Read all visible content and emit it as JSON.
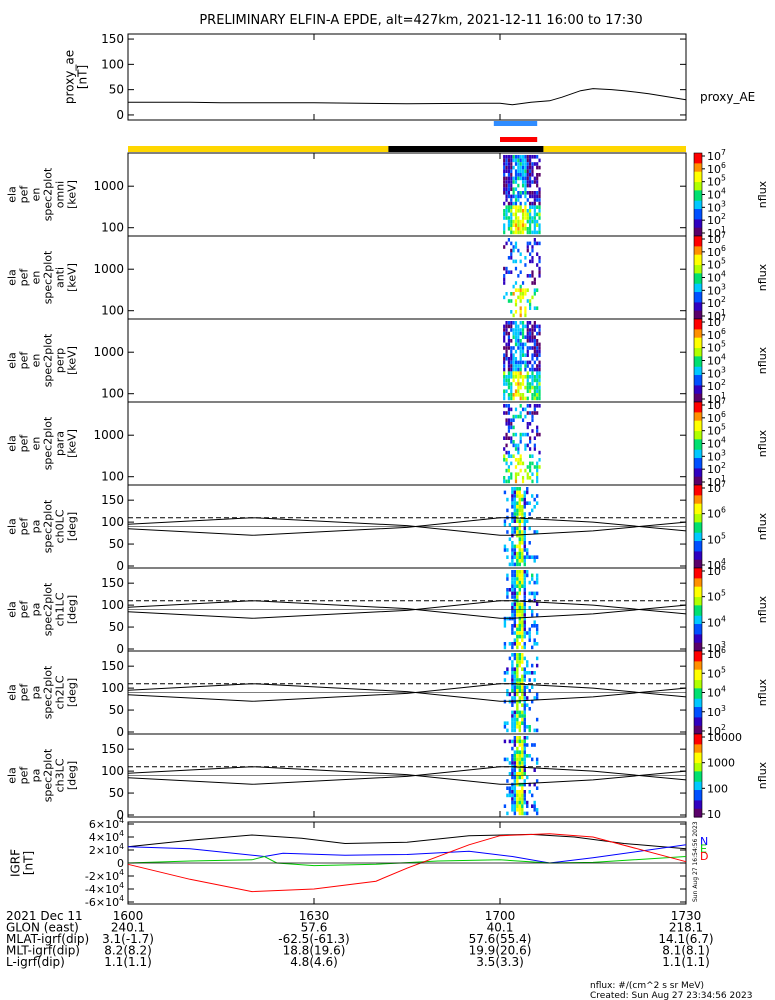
{
  "title": "PRELIMINARY ELFIN-A EPDE, alt=427km, 2021-12-11 16:00 to 17:30",
  "chart_data": {
    "type": "multi-panel",
    "x_range": [
      "2021-12-11 16:00",
      "2021-12-11 17:30"
    ],
    "proxy_ae": {
      "ylabel": "proxy_ae\n[nT]",
      "side_label": "proxy_AE",
      "yticks": [
        "0",
        "50",
        "100",
        "150"
      ],
      "ylim": [
        -10,
        160
      ],
      "x_minutes": [
        0,
        10,
        15,
        30,
        45,
        57,
        60,
        62,
        65,
        68,
        70,
        73,
        75,
        78,
        80,
        84,
        90
      ],
      "values": [
        25,
        25,
        24,
        24,
        22,
        23,
        23,
        20,
        25,
        28,
        35,
        48,
        52,
        50,
        48,
        42,
        30
      ]
    },
    "bars": {
      "blue_bar": [
        "16:59",
        "17:06"
      ],
      "red_bar": [
        "17:00",
        "17:06"
      ],
      "yellow_segments": [
        [
          "16:00",
          "16:42"
        ],
        [
          "17:07",
          "17:30"
        ]
      ],
      "black_segment": [
        "16:42",
        "17:07"
      ]
    },
    "spectrograms": [
      {
        "ylabel": "ela\npef\nen\nspec2plot\nomni\n[keV]",
        "yticks": [
          "100",
          "1000"
        ],
        "cb_ticks": [
          "10^1",
          "10^2",
          "10^3",
          "10^4",
          "10^5",
          "10^6",
          "10^7"
        ],
        "cb_label": "nflux"
      },
      {
        "ylabel": "ela\npef\nen\nspec2plot\nanti\n[keV]",
        "yticks": [
          "100",
          "1000"
        ],
        "cb_ticks": [
          "10^1",
          "10^2",
          "10^3",
          "10^4",
          "10^5",
          "10^6",
          "10^7"
        ],
        "cb_label": "nflux"
      },
      {
        "ylabel": "ela\npef\nen\nspec2plot\nperp\n[keV]",
        "yticks": [
          "100",
          "1000"
        ],
        "cb_ticks": [
          "10^1",
          "10^2",
          "10^3",
          "10^4",
          "10^5",
          "10^6",
          "10^7"
        ],
        "cb_label": "nflux"
      },
      {
        "ylabel": "ela\npef\nen\nspec2plot\npara\n[keV]",
        "yticks": [
          "100",
          "1000"
        ],
        "cb_ticks": [
          "10^1",
          "10^2",
          "10^3",
          "10^4",
          "10^5",
          "10^6",
          "10^7"
        ],
        "cb_label": "nflux"
      }
    ],
    "pitch_panels": [
      {
        "ylabel": "ela\npef\npa\nspec2plot\nch0LC\n[deg]",
        "yticks": [
          "0",
          "50",
          "100",
          "150"
        ],
        "cb_ticks": [
          "10^4",
          "10^5",
          "10^6",
          "10^7"
        ],
        "cb_label": "nflux"
      },
      {
        "ylabel": "ela\npef\npa\nspec2plot\nch1LC\n[deg]",
        "yticks": [
          "0",
          "50",
          "100",
          "150"
        ],
        "cb_ticks": [
          "10^3",
          "10^4",
          "10^5",
          "10^6"
        ],
        "cb_label": "nflux"
      },
      {
        "ylabel": "ela\npef\npa\nspec2plot\nch2LC\n[deg]",
        "yticks": [
          "0",
          "50",
          "100",
          "150"
        ],
        "cb_ticks": [
          "10^2",
          "10^3",
          "10^4",
          "10^5",
          "10^6"
        ],
        "cb_label": "nflux"
      },
      {
        "ylabel": "ela\npef\npa\nspec2plot\nch3LC\n[deg]",
        "yticks": [
          "0",
          "50",
          "100",
          "150"
        ],
        "cb_ticks": [
          "10",
          "100",
          "1000",
          "10000"
        ],
        "cb_label": "nflux"
      }
    ],
    "igrf": {
      "ylabel": "IGRF\n[nT]",
      "yticks": [
        "-6×10^4",
        "-4×10^4",
        "-2×10^4",
        "0",
        "2×10^4",
        "4×10^4",
        "6×10^4"
      ],
      "legend": [
        "N",
        "E",
        "D"
      ],
      "legend_colors": [
        "#0000ff",
        "#00cc00",
        "#ff0000"
      ],
      "side_text": "Sun Aug 27 16:54:56 2023"
    },
    "xaxis": {
      "rows": [
        {
          "label": "2021 Dec 11",
          "values": [
            "1600",
            "1630",
            "1700",
            "1730"
          ]
        },
        {
          "label": "GLON (east)",
          "values": [
            "240.1",
            "57.6",
            "40.1",
            "218.1"
          ]
        },
        {
          "label": "MLAT-igrf(dip)",
          "values": [
            "3.1(-1.7)",
            "-62.5(-61.3)",
            "57.6(55.4)",
            "14.1(6.7)"
          ]
        },
        {
          "label": "MLT-igrf(dip)",
          "values": [
            "8.2(8.2)",
            "18.8(19.6)",
            "19.9(20.6)",
            "8.1(8.1)"
          ]
        },
        {
          "label": "L-igrf(dip)",
          "values": [
            "1.1(1.1)",
            "4.8(4.6)",
            "3.5(3.3)",
            "1.1(1.1)"
          ]
        }
      ]
    }
  },
  "footer": {
    "units": "nflux: #/(cm^2 s sr MeV)",
    "created": "Created: Sun Aug 27 23:34:56 2023"
  }
}
